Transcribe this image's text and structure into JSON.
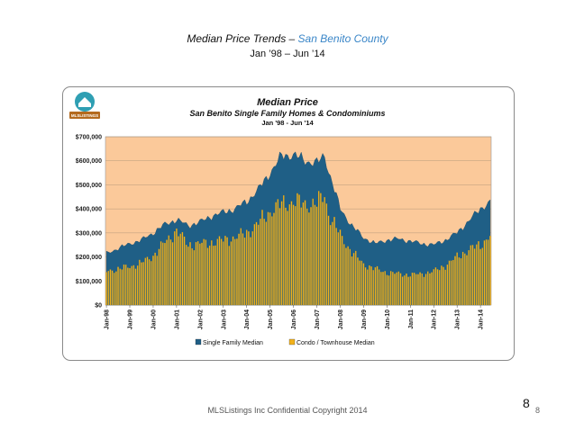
{
  "slide": {
    "title_prefix": "Median Price Trends – ",
    "title_county": "San Benito County",
    "subtitle": "Jan ’98 – Jun ’14",
    "footer": "MLSListings Inc Confidential Copyright 2014",
    "page_number_large": "8",
    "page_number_small": "8",
    "logo_text": "MLSLISTINGS",
    "colors": {
      "county": "#3a86c8"
    }
  },
  "chart_data": {
    "type": "area",
    "title": "Median Price",
    "subtitle": "San Benito Single Family Homes & Condominiums",
    "period": "Jan '98 - Jun '14",
    "xlabel": "",
    "ylabel": "",
    "ylim": [
      0,
      700000
    ],
    "y_ticks": [
      "$0",
      "$100,000",
      "$200,000",
      "$300,000",
      "$400,000",
      "$500,000",
      "$600,000",
      "$700,000"
    ],
    "x_tick_labels": [
      "Jan-98",
      "Jan-99",
      "Jan-00",
      "Jan-01",
      "Jan-02",
      "Jan-03",
      "Jan-04",
      "Jan-05",
      "Jan-06",
      "Jan-07",
      "Jan-08",
      "Jan-09",
      "Jan-10",
      "Jan-11",
      "Jan-12",
      "Jan-13",
      "Jan-14"
    ],
    "legend_position": "bottom",
    "plot_background": "#fbc99a",
    "series": [
      {
        "name": "Single Family Median",
        "color": "#1f5f86",
        "anchor_months": [
          0,
          6,
          12,
          18,
          24,
          30,
          36,
          42,
          48,
          54,
          60,
          66,
          72,
          78,
          84,
          90,
          96,
          102,
          108,
          112,
          114,
          120,
          126,
          132,
          138,
          144,
          150,
          156,
          162,
          168,
          174,
          180,
          186,
          192,
          197
        ],
        "anchor_values": [
          215000,
          235000,
          255000,
          270000,
          300000,
          335000,
          355000,
          330000,
          345000,
          370000,
          385000,
          400000,
          430000,
          480000,
          550000,
          620000,
          625000,
          600000,
          590000,
          620000,
          560000,
          400000,
          330000,
          280000,
          255000,
          270000,
          275000,
          265000,
          255000,
          250000,
          270000,
          300000,
          350000,
          400000,
          430000
        ]
      },
      {
        "name": "Condo / Townhouse Median",
        "color": "#f2b21c",
        "anchor_months": [
          0,
          6,
          12,
          18,
          24,
          30,
          36,
          42,
          48,
          54,
          60,
          66,
          72,
          78,
          84,
          90,
          96,
          102,
          108,
          112,
          114,
          120,
          126,
          132,
          138,
          144,
          150,
          156,
          162,
          168,
          174,
          180,
          186,
          192,
          197
        ],
        "anchor_values": [
          140000,
          150000,
          160000,
          175000,
          205000,
          260000,
          310000,
          250000,
          255000,
          260000,
          270000,
          280000,
          300000,
          340000,
          390000,
          420000,
          430000,
          420000,
          420000,
          460000,
          380000,
          290000,
          220000,
          170000,
          150000,
          135000,
          130000,
          125000,
          130000,
          140000,
          165000,
          200000,
          230000,
          250000,
          290000
        ]
      }
    ]
  }
}
